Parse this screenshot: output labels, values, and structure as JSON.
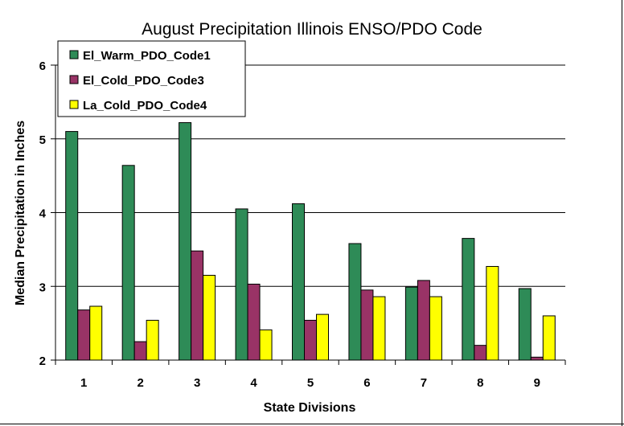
{
  "chart_data": {
    "type": "bar",
    "title": "August Precipitation Illinois ENSO/PDO Code",
    "xlabel": "State Divisions",
    "ylabel": "Median Precipitation in Inches",
    "categories": [
      "1",
      "2",
      "3",
      "4",
      "5",
      "6",
      "7",
      "8",
      "9"
    ],
    "ylim": [
      2,
      6
    ],
    "yticks": [
      "2",
      "3",
      "4",
      "5",
      "6"
    ],
    "grid": true,
    "legend_position": "top-left",
    "series": [
      {
        "name": "El_Warm_PDO_Code1",
        "color": "#2e8b57",
        "values": [
          5.1,
          4.64,
          5.22,
          4.05,
          4.12,
          3.58,
          2.99,
          3.65,
          2.97
        ]
      },
      {
        "name": "El_Cold_PDO_Code3",
        "color": "#993366",
        "values": [
          2.68,
          2.25,
          3.48,
          3.03,
          2.54,
          2.95,
          3.08,
          2.2,
          2.04
        ]
      },
      {
        "name": "La_Cold_PDO_Code4",
        "color": "#ffff00",
        "values": [
          2.73,
          2.54,
          3.15,
          2.41,
          2.62,
          2.86,
          2.86,
          3.27,
          2.6
        ]
      }
    ]
  }
}
